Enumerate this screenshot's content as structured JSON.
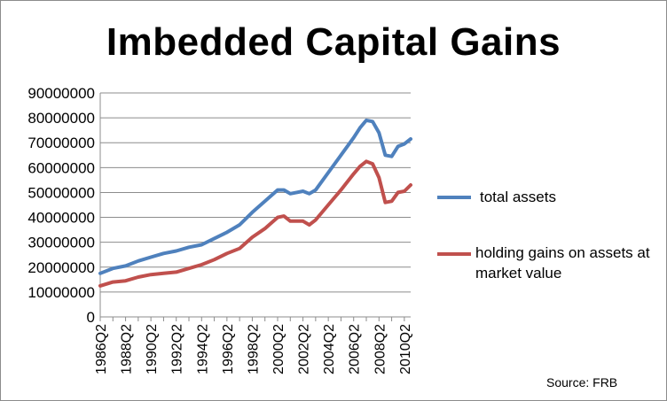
{
  "chart_data": {
    "type": "line",
    "title": "Imbedded Capital Gains",
    "source": "Source: FRB",
    "ylim": [
      0,
      90000000
    ],
    "yticks": [
      "0",
      "10000000",
      "20000000",
      "30000000",
      "40000000",
      "50000000",
      "60000000",
      "70000000",
      "80000000",
      "90000000"
    ],
    "xticks": [
      "1986Q2",
      "1988Q2",
      "1990Q2",
      "1992Q2",
      "1994Q2",
      "1996Q2",
      "1998Q2",
      "2000Q2",
      "2002Q2",
      "2004Q2",
      "2006Q2",
      "2008Q2",
      "2010Q2"
    ],
    "grid": true,
    "legend_position": "right",
    "series": [
      {
        "name": "total assets",
        "color": "#4f81bd",
        "points": [
          [
            "1986Q2",
            17500000
          ],
          [
            "1987Q2",
            19500000
          ],
          [
            "1988Q2",
            20500000
          ],
          [
            "1989Q2",
            22500000
          ],
          [
            "1990Q2",
            24000000
          ],
          [
            "1991Q2",
            25500000
          ],
          [
            "1992Q2",
            26500000
          ],
          [
            "1993Q2",
            28000000
          ],
          [
            "1994Q2",
            29000000
          ],
          [
            "1995Q2",
            31500000
          ],
          [
            "1996Q2",
            34000000
          ],
          [
            "1997Q2",
            37000000
          ],
          [
            "1998Q2",
            42000000
          ],
          [
            "1999Q2",
            46500000
          ],
          [
            "2000Q2",
            51000000
          ],
          [
            "2000Q4",
            51000000
          ],
          [
            "2001Q2",
            49500000
          ],
          [
            "2001Q4",
            50000000
          ],
          [
            "2002Q2",
            50500000
          ],
          [
            "2002Q4",
            49500000
          ],
          [
            "2003Q2",
            51000000
          ],
          [
            "2004Q2",
            58000000
          ],
          [
            "2005Q2",
            65000000
          ],
          [
            "2006Q2",
            72000000
          ],
          [
            "2006Q4",
            76000000
          ],
          [
            "2007Q2",
            79000000
          ],
          [
            "2007Q4",
            78500000
          ],
          [
            "2008Q2",
            74000000
          ],
          [
            "2008Q4",
            65000000
          ],
          [
            "2009Q2",
            64500000
          ],
          [
            "2009Q4",
            68500000
          ],
          [
            "2010Q2",
            69500000
          ],
          [
            "2010Q4",
            71500000
          ]
        ]
      },
      {
        "name": "holding gains on assets at market value",
        "color": "#c0504d",
        "points": [
          [
            "1986Q2",
            12500000
          ],
          [
            "1987Q2",
            14000000
          ],
          [
            "1988Q2",
            14500000
          ],
          [
            "1989Q2",
            16000000
          ],
          [
            "1990Q2",
            17000000
          ],
          [
            "1991Q2",
            17500000
          ],
          [
            "1992Q2",
            18000000
          ],
          [
            "1993Q2",
            19500000
          ],
          [
            "1994Q2",
            21000000
          ],
          [
            "1995Q2",
            23000000
          ],
          [
            "1996Q2",
            25500000
          ],
          [
            "1997Q2",
            27500000
          ],
          [
            "1998Q2",
            32000000
          ],
          [
            "1999Q2",
            35500000
          ],
          [
            "2000Q2",
            40000000
          ],
          [
            "2000Q4",
            40500000
          ],
          [
            "2001Q2",
            38500000
          ],
          [
            "2001Q4",
            38500000
          ],
          [
            "2002Q2",
            38500000
          ],
          [
            "2002Q4",
            37000000
          ],
          [
            "2003Q2",
            39000000
          ],
          [
            "2004Q2",
            45000000
          ],
          [
            "2005Q2",
            51000000
          ],
          [
            "2006Q2",
            57500000
          ],
          [
            "2006Q4",
            60500000
          ],
          [
            "2007Q2",
            62500000
          ],
          [
            "2007Q4",
            61500000
          ],
          [
            "2008Q2",
            56000000
          ],
          [
            "2008Q4",
            46000000
          ],
          [
            "2009Q2",
            46500000
          ],
          [
            "2009Q4",
            50000000
          ],
          [
            "2010Q2",
            50500000
          ],
          [
            "2010Q4",
            53000000
          ]
        ]
      }
    ]
  }
}
